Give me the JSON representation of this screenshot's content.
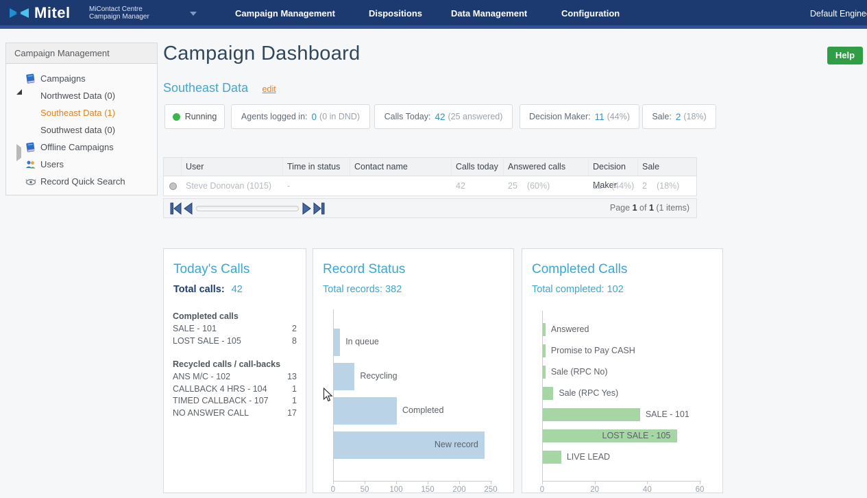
{
  "nav": {
    "brand": "Mitel",
    "app_line1": "MiContact Centre",
    "app_line2": "Campaign Manager",
    "items": [
      "Campaign Management",
      "Dispositions",
      "Data Management",
      "Configuration"
    ],
    "user": "Default Engineer"
  },
  "sidebar": {
    "header": "Campaign Management",
    "tree": [
      {
        "label": "Campaigns"
      },
      {
        "label": "Northwest Data (0)"
      },
      {
        "label": "Southeast Data (1)"
      },
      {
        "label": "Southwest data (0)"
      },
      {
        "label": "Offline Campaigns"
      },
      {
        "label": "Users"
      },
      {
        "label": "Record Quick Search"
      }
    ]
  },
  "header": {
    "title": "Campaign Dashboard",
    "help_label": "Help"
  },
  "campaign": {
    "name": "Southeast Data",
    "edit_label": "edit"
  },
  "badges": [
    {
      "label": "Running",
      "dot_color": "#3cb54a"
    },
    {
      "label": "Agents logged in:",
      "value": "0",
      "extra": "(0 in DND)"
    },
    {
      "label": "Calls Today:",
      "value": "42",
      "extra": "(25 answered)"
    },
    {
      "label": "Decision Maker:",
      "value": "11",
      "extra": "(44%)"
    },
    {
      "label": "Sale:",
      "value": "2",
      "extra": "(18%)"
    }
  ],
  "table": {
    "columns": [
      "User",
      "Time in status",
      "Contact name",
      "Calls today",
      "Answered calls",
      "Decision Maker",
      "Sale"
    ],
    "row": {
      "user": "Steve Donovan (1015)",
      "time_in_status": "-",
      "contact_name": "",
      "calls_today": "42",
      "answered": "25",
      "answered_pct": "(60%)",
      "decision_maker": "11",
      "decision_maker_pct": "(44%)",
      "sale": "2",
      "sale_pct": "(18%)"
    }
  },
  "pagination": {
    "page_word": "Page",
    "page": "1",
    "of_word": "of",
    "total": "1",
    "items": "(1 items)"
  },
  "cards": {
    "todays_calls": {
      "title": "Today's Calls",
      "total_label": "Total calls:",
      "total_value": "42",
      "sections": [
        {
          "heading": "Completed calls",
          "rows": [
            [
              "SALE - 101",
              "2"
            ],
            [
              "LOST SALE - 105",
              "8"
            ]
          ]
        },
        {
          "heading": "Recycled calls / call-backs",
          "rows": [
            [
              "ANS M/C - 102",
              "13"
            ],
            [
              "CALLBACK 4 HRS - 104",
              "1"
            ],
            [
              "TIMED CALLBACK - 107",
              "1"
            ],
            [
              "NO ANSWER CALL",
              "17"
            ]
          ]
        }
      ]
    }
  },
  "chart_data": [
    {
      "type": "bar",
      "orientation": "horizontal",
      "title": "Record Status",
      "subtitle": "Total records: 382",
      "categories": [
        "In queue",
        "Recycling",
        "Completed",
        "New record"
      ],
      "values": [
        10,
        33,
        100,
        239
      ],
      "xlim": [
        0,
        250
      ],
      "xticks": [
        0,
        50,
        100,
        150,
        200,
        250
      ],
      "bar_color": "#bad3e6",
      "grid": false,
      "legend": false
    },
    {
      "type": "bar",
      "orientation": "horizontal",
      "title": "Completed Calls",
      "subtitle": "Total completed: 102",
      "categories": [
        "Answered",
        "Promise to Pay CASH",
        "Sale (RPC No)",
        "Sale (RPC Yes)",
        "SALE - 101",
        "LOST SALE - 105",
        "LIVE LEAD"
      ],
      "values": [
        1,
        1,
        1,
        4,
        37,
        51,
        7
      ],
      "xlim": [
        0,
        60
      ],
      "xticks": [
        0,
        20,
        40,
        60
      ],
      "bar_color": "#a6d6a4",
      "grid": false,
      "legend": false
    }
  ]
}
